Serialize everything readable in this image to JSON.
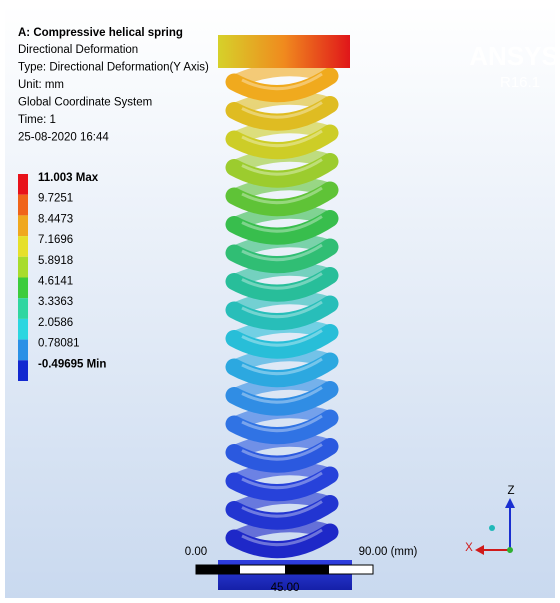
{
  "header": {
    "title": "A: Compressive helical spring",
    "lines": [
      "Directional Deformation",
      "Type: Directional Deformation(Y Axis)",
      "Unit: mm",
      "Global Coordinate System",
      "Time: 1",
      "25-08-2020 16:44"
    ]
  },
  "legend": {
    "levels": [
      "11.003 Max",
      "9.7251",
      "8.4473",
      "7.1696",
      "5.8918",
      "4.6141",
      "3.3363",
      "2.0586",
      "0.78081",
      "-0.49695 Min"
    ]
  },
  "logo": {
    "name": "ANSYS",
    "version": "R16.1"
  },
  "scale_bar": {
    "start": "0.00",
    "mid": "45.00",
    "end": "90.00 (mm)"
  },
  "triad": {
    "z": "Z",
    "x": "X"
  }
}
